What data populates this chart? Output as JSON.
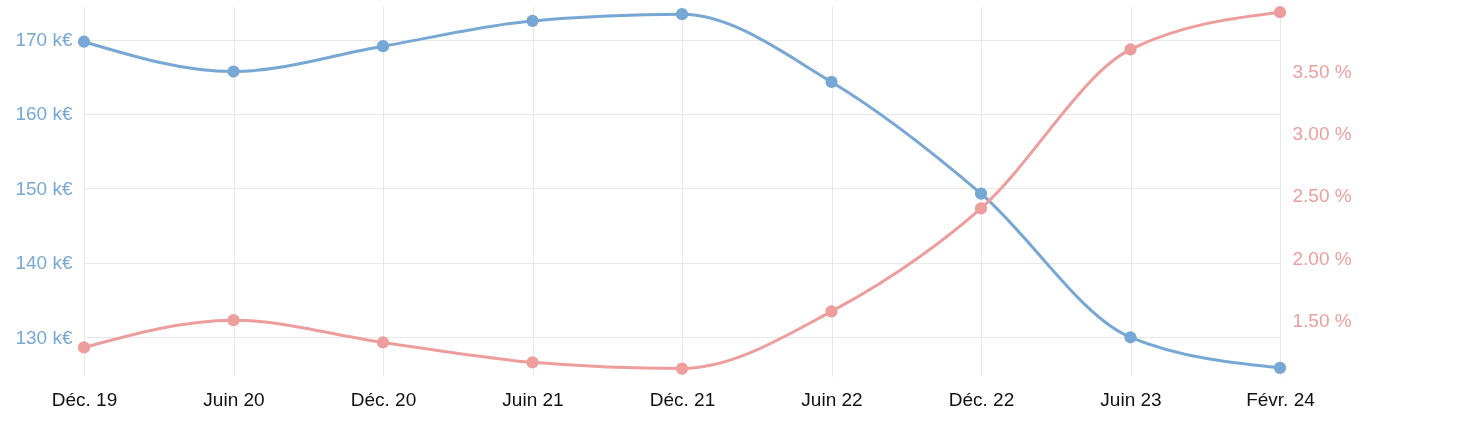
{
  "chart_data": {
    "type": "line",
    "categories": [
      "Déc. 19",
      "Juin 20",
      "Déc. 20",
      "Juin 21",
      "Déc. 21",
      "Juin 22",
      "Déc. 22",
      "Juin 23",
      "Févr. 24"
    ],
    "series": [
      {
        "color": "#77a7d4",
        "values": [
          169.7,
          165.7,
          169.1,
          172.5,
          173.4,
          164.3,
          149.3,
          130.0,
          125.9
        ]
      },
      {
        "color": "#ee9d9d",
        "axis": "y2",
        "values": [
          1.28,
          1.5,
          1.32,
          1.16,
          1.11,
          1.57,
          2.4,
          3.68,
          3.98
        ]
      }
    ],
    "ylim": [
      124.8,
      174.5
    ],
    "yticks": [
      {
        "value": 130,
        "label": "130 k€"
      },
      {
        "value": 140,
        "label": "140 k€"
      },
      {
        "value": 150,
        "label": "150 k€"
      },
      {
        "value": 160,
        "label": "160 k€"
      },
      {
        "value": 170,
        "label": "170 k€"
      }
    ],
    "y2lim": [
      1.05,
      4.03
    ],
    "y2ticks": [
      {
        "value": 1.5,
        "label": "1.50 %"
      },
      {
        "value": 2,
        "label": "2.00 %"
      },
      {
        "value": 2.5,
        "label": "2.50 %"
      },
      {
        "value": 3,
        "label": "3.00 %"
      },
      {
        "value": 3.5,
        "label": "3.50 %"
      }
    ],
    "grid": true,
    "marker": "circle",
    "line_style": "solid"
  }
}
